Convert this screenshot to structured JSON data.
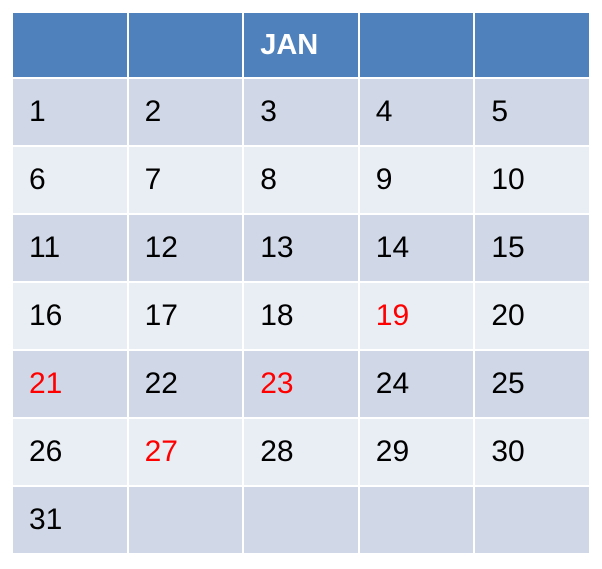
{
  "calendar": {
    "month": "JAN",
    "header_cells": [
      "",
      "",
      "JAN",
      "",
      ""
    ],
    "rows": [
      [
        "1",
        "2",
        "3",
        "4",
        "5"
      ],
      [
        "6",
        "7",
        "8",
        "9",
        "10"
      ],
      [
        "11",
        "12",
        "13",
        "14",
        "15"
      ],
      [
        "16",
        "17",
        "18",
        "19",
        "20"
      ],
      [
        "21",
        "22",
        "23",
        "24",
        "25"
      ],
      [
        "26",
        "27",
        "28",
        "29",
        "30"
      ],
      [
        "31",
        "",
        "",
        "",
        ""
      ]
    ],
    "highlighted_days": [
      "19",
      "21",
      "23",
      "27"
    ]
  },
  "colors": {
    "header_bg": "#4f81bd",
    "band_dark": "#d0d8e8",
    "band_light": "#e9edf4",
    "highlight_text": "#ff0000",
    "normal_text": "#000000"
  }
}
